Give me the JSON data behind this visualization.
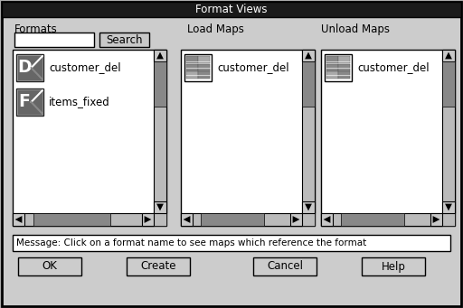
{
  "title": "Format Views",
  "title_bg": "#1a1a1a",
  "title_fg": "#ffffff",
  "dialog_bg": "#cccccc",
  "white": "#ffffff",
  "dark_gray": "#888888",
  "scrollbar_thumb": "#999999",
  "scrollbar_bg": "#bbbbbb",
  "light_gray": "#c8c8c8",
  "black": "#000000",
  "formats_label": "Formats",
  "search_btn": "Search",
  "load_maps_label": "Load Maps",
  "unload_maps_label": "Unload Maps",
  "list1_items": [
    "customer_del",
    "items_fixed"
  ],
  "list2_items": [
    "customer_del"
  ],
  "list3_items": [
    "customer_del"
  ],
  "message": "Message: Click on a format name to see maps which reference the format",
  "buttons": [
    "OK",
    "Create",
    "Cancel",
    "Help"
  ],
  "figw": 5.12,
  "figh": 3.41,
  "dpi": 100
}
